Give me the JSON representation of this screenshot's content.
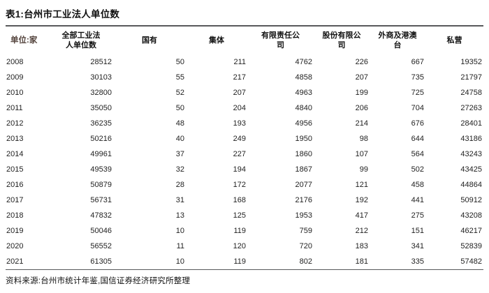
{
  "page": {
    "title": "表1:台州市工业法人单位数",
    "source_note": "资料来源:台州市统计年鉴,国信证券经济研究所整理"
  },
  "table": {
    "unit_label": "单位:家",
    "columns": [
      "全部工业法\n人单位数",
      "国有",
      "集体",
      "有限责任公\n司",
      "股份有限公\n司",
      "外商及港澳\n台",
      "私营"
    ],
    "rows": [
      [
        "2008",
        "28512",
        "50",
        "211",
        "4762",
        "226",
        "667",
        "19352"
      ],
      [
        "2009",
        "30103",
        "55",
        "217",
        "4858",
        "207",
        "735",
        "21797"
      ],
      [
        "2010",
        "32800",
        "52",
        "207",
        "4963",
        "199",
        "725",
        "24758"
      ],
      [
        "2011",
        "35050",
        "50",
        "204",
        "4840",
        "206",
        "704",
        "27263"
      ],
      [
        "2012",
        "36235",
        "48",
        "193",
        "4956",
        "214",
        "676",
        "28401"
      ],
      [
        "2013",
        "50216",
        "40",
        "249",
        "1950",
        "98",
        "644",
        "43186"
      ],
      [
        "2014",
        "49961",
        "37",
        "227",
        "1860",
        "107",
        "564",
        "43243"
      ],
      [
        "2015",
        "49539",
        "32",
        "194",
        "1867",
        "99",
        "502",
        "43425"
      ],
      [
        "2016",
        "50879",
        "28",
        "172",
        "2077",
        "121",
        "458",
        "44864"
      ],
      [
        "2017",
        "56731",
        "31",
        "168",
        "2176",
        "192",
        "441",
        "50912"
      ],
      [
        "2018",
        "47832",
        "13",
        "125",
        "1953",
        "417",
        "275",
        "43208"
      ],
      [
        "2019",
        "50046",
        "10",
        "119",
        "759",
        "212",
        "151",
        "46217"
      ],
      [
        "2020",
        "56552",
        "11",
        "120",
        "720",
        "183",
        "341",
        "52839"
      ],
      [
        "2021",
        "61305",
        "10",
        "119",
        "802",
        "181",
        "335",
        "57482"
      ]
    ]
  },
  "colors": {
    "unit_label_text": "#55453e",
    "rule": "#58595b",
    "body_text": "#1f1f1f",
    "title_text": "#111111"
  }
}
